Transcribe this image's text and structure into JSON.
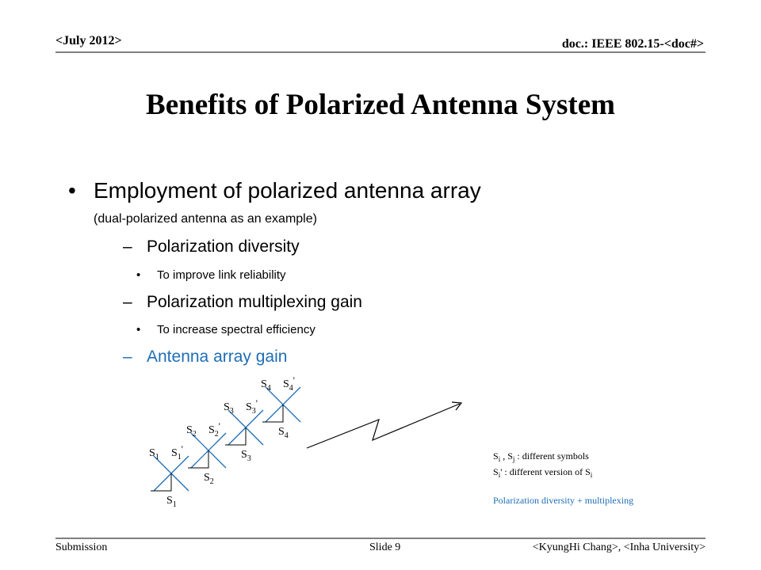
{
  "header": {
    "date": "<July 2012>",
    "doc": "doc.: IEEE 802.15-<doc#>"
  },
  "title": "Benefits of Polarized Antenna System",
  "bullet": {
    "text": "Employment of polarized antenna array",
    "note": "(dual-polarized antenna as an example)",
    "items": [
      {
        "text": "Polarization diversity",
        "sub": "To improve link reliability"
      },
      {
        "text": "Polarization multiplexing gain",
        "sub": "To increase spectral efficiency"
      },
      {
        "text": "Antenna array gain"
      }
    ]
  },
  "diagram": {
    "antennas": [
      {
        "base": "S",
        "sub": "1",
        "prime": "'"
      },
      {
        "base": "S",
        "sub": "2",
        "prime": "'"
      },
      {
        "base": "S",
        "sub": "3",
        "prime": "'"
      },
      {
        "base": "S",
        "sub": "4",
        "prime": "'"
      }
    ],
    "notes": [
      [
        {
          "text": "S"
        },
        {
          "sub": "i"
        },
        {
          "text": " , S"
        },
        {
          "sub": "j"
        },
        {
          "text": " : different symbols"
        }
      ],
      [
        {
          "text": "S"
        },
        {
          "sub": "i"
        },
        {
          "text": "' : different version of S"
        },
        {
          "sub": "i"
        }
      ],
      [
        {
          "text": "Polarization diversity + multiplexing"
        }
      ]
    ]
  },
  "footer": {
    "left": "Submission",
    "center": "Slide 9",
    "right": "<KyungHi Chang>, <Inha University>"
  }
}
